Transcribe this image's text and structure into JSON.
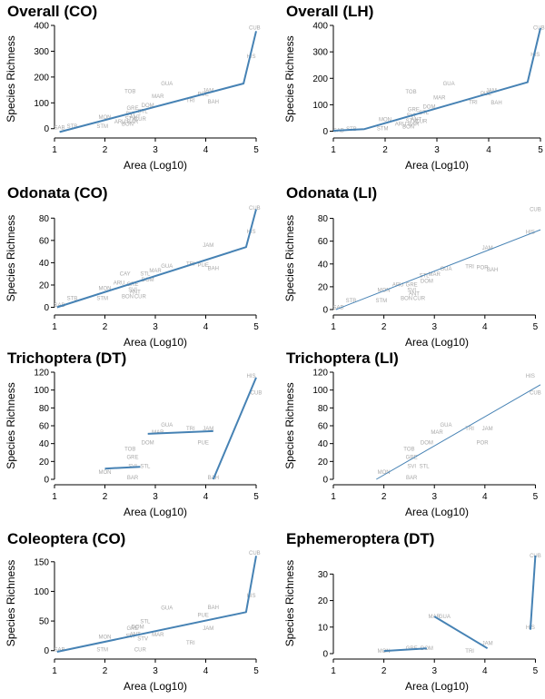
{
  "chart_data": [
    {
      "type": "scatter",
      "title": "Overall (CO)",
      "xlabel": "Area (Log10)",
      "ylabel": "Species Richness",
      "xlim": [
        1,
        5
      ],
      "ylim": [
        -15,
        400
      ],
      "xticks": [
        1,
        2,
        3,
        4,
        5
      ],
      "yticks": [
        0,
        100,
        200,
        300,
        400
      ],
      "fit_type": "piecewise",
      "fit": [
        [
          1.1,
          -13
        ],
        [
          4.75,
          175
        ],
        [
          5.0,
          378
        ]
      ],
      "points": [
        {
          "label": "CUB",
          "x": 4.97,
          "y": 392
        },
        {
          "label": "HIS",
          "x": 4.9,
          "y": 280
        },
        {
          "label": "GUA",
          "x": 3.23,
          "y": 175
        },
        {
          "label": "TOB",
          "x": 2.5,
          "y": 145
        },
        {
          "label": "JAM",
          "x": 4.05,
          "y": 148
        },
        {
          "label": "PUE",
          "x": 3.95,
          "y": 135
        },
        {
          "label": "MAR",
          "x": 3.05,
          "y": 125
        },
        {
          "label": "TRI",
          "x": 3.7,
          "y": 110
        },
        {
          "label": "BAH",
          "x": 4.15,
          "y": 105
        },
        {
          "label": "DOM",
          "x": 2.85,
          "y": 90
        },
        {
          "label": "GRE",
          "x": 2.55,
          "y": 80
        },
        {
          "label": "STL",
          "x": 2.75,
          "y": 68
        },
        {
          "label": "SVI",
          "x": 2.5,
          "y": 58
        },
        {
          "label": "MON",
          "x": 2.0,
          "y": 45
        },
        {
          "label": "ANT",
          "x": 2.6,
          "y": 45
        },
        {
          "label": "CUR",
          "x": 2.7,
          "y": 38
        },
        {
          "label": "STV",
          "x": 2.5,
          "y": 40
        },
        {
          "label": "ARU",
          "x": 2.3,
          "y": 28
        },
        {
          "label": "BAR",
          "x": 2.55,
          "y": 28
        },
        {
          "label": "BON",
          "x": 2.45,
          "y": 18
        },
        {
          "label": "STM",
          "x": 1.95,
          "y": 10
        },
        {
          "label": "STB",
          "x": 1.35,
          "y": 10
        },
        {
          "label": "SAB",
          "x": 1.1,
          "y": 5
        }
      ]
    },
    {
      "type": "scatter",
      "title": "Overall (LH)",
      "xlabel": "Area (Log10)",
      "ylabel": "Species Richness",
      "xlim": [
        1,
        5
      ],
      "ylim": [
        -5,
        400
      ],
      "xticks": [
        1,
        2,
        3,
        4,
        5
      ],
      "yticks": [
        0,
        100,
        200,
        300,
        400
      ],
      "fit_type": "piecewise",
      "fit": [
        [
          1.0,
          2
        ],
        [
          1.6,
          8
        ],
        [
          4.75,
          185
        ],
        [
          5.0,
          390
        ]
      ],
      "points": [
        {
          "label": "CUB",
          "x": 4.97,
          "y": 392
        },
        {
          "label": "HIS",
          "x": 4.9,
          "y": 290
        },
        {
          "label": "GUA",
          "x": 3.23,
          "y": 180
        },
        {
          "label": "TOB",
          "x": 2.5,
          "y": 150
        },
        {
          "label": "JAM",
          "x": 4.05,
          "y": 155
        },
        {
          "label": "PUE",
          "x": 3.95,
          "y": 142
        },
        {
          "label": "MAR",
          "x": 3.05,
          "y": 127
        },
        {
          "label": "TRI",
          "x": 3.7,
          "y": 110
        },
        {
          "label": "BAH",
          "x": 4.15,
          "y": 108
        },
        {
          "label": "DOM",
          "x": 2.85,
          "y": 92
        },
        {
          "label": "GRE",
          "x": 2.55,
          "y": 82
        },
        {
          "label": "STL",
          "x": 2.75,
          "y": 70
        },
        {
          "label": "SVI",
          "x": 2.5,
          "y": 60
        },
        {
          "label": "MON",
          "x": 2.0,
          "y": 45
        },
        {
          "label": "ANT",
          "x": 2.6,
          "y": 45
        },
        {
          "label": "CUR",
          "x": 2.7,
          "y": 38
        },
        {
          "label": "STV",
          "x": 2.5,
          "y": 40
        },
        {
          "label": "ARU",
          "x": 2.3,
          "y": 28
        },
        {
          "label": "BAR",
          "x": 2.55,
          "y": 28
        },
        {
          "label": "BON",
          "x": 2.45,
          "y": 18
        },
        {
          "label": "STM",
          "x": 1.95,
          "y": 10
        },
        {
          "label": "STB",
          "x": 1.35,
          "y": 8
        },
        {
          "label": "SAB",
          "x": 1.1,
          "y": 4
        }
      ]
    },
    {
      "type": "scatter",
      "title": "Odonata (CO)",
      "xlabel": "Area (Log10)",
      "ylabel": "Species Richness",
      "xlim": [
        1,
        5
      ],
      "ylim": [
        -2,
        90
      ],
      "xticks": [
        1,
        2,
        3,
        4,
        5
      ],
      "yticks": [
        0,
        20,
        40,
        60,
        80
      ],
      "fit_type": "piecewise",
      "fit": [
        [
          1.05,
          0
        ],
        [
          4.8,
          54
        ],
        [
          5.0,
          88
        ]
      ],
      "points": [
        {
          "label": "CUB",
          "x": 4.97,
          "y": 89
        },
        {
          "label": "HIS",
          "x": 4.9,
          "y": 68
        },
        {
          "label": "JAM",
          "x": 4.05,
          "y": 56
        },
        {
          "label": "TRI",
          "x": 3.7,
          "y": 39
        },
        {
          "label": "PUE",
          "x": 3.95,
          "y": 38
        },
        {
          "label": "BAH",
          "x": 4.15,
          "y": 35
        },
        {
          "label": "GUA",
          "x": 3.23,
          "y": 37
        },
        {
          "label": "MAR",
          "x": 3.0,
          "y": 33
        },
        {
          "label": "CAY",
          "x": 2.4,
          "y": 30
        },
        {
          "label": "STL",
          "x": 2.8,
          "y": 30
        },
        {
          "label": "DOM",
          "x": 2.85,
          "y": 25
        },
        {
          "label": "ARU",
          "x": 2.28,
          "y": 22
        },
        {
          "label": "GRE",
          "x": 2.55,
          "y": 21
        },
        {
          "label": "MON",
          "x": 2.0,
          "y": 17
        },
        {
          "label": "SVI",
          "x": 2.55,
          "y": 16
        },
        {
          "label": "ANT",
          "x": 2.6,
          "y": 14
        },
        {
          "label": "BON",
          "x": 2.45,
          "y": 10
        },
        {
          "label": "CUR",
          "x": 2.7,
          "y": 10
        },
        {
          "label": "STM",
          "x": 1.95,
          "y": 8
        },
        {
          "label": "STB",
          "x": 1.35,
          "y": 8
        },
        {
          "label": "SAB",
          "x": 1.1,
          "y": 2
        }
      ]
    },
    {
      "type": "scatter",
      "title": "Odonata (LI)",
      "xlabel": "Area (Log10)",
      "ylabel": "Species Richness",
      "xlim": [
        1,
        5.1
      ],
      "ylim": [
        0,
        90
      ],
      "xticks": [
        1,
        2,
        3,
        4,
        5
      ],
      "yticks": [
        0,
        20,
        40,
        60,
        80
      ],
      "fit_type": "linear",
      "fit": [
        [
          1.05,
          0
        ],
        [
          5.1,
          70
        ]
      ],
      "points": [
        {
          "label": "CUB",
          "x": 5.0,
          "y": 88
        },
        {
          "label": "HIS",
          "x": 4.9,
          "y": 68
        },
        {
          "label": "JAM",
          "x": 4.05,
          "y": 54
        },
        {
          "label": "TRI",
          "x": 3.7,
          "y": 38
        },
        {
          "label": "POR",
          "x": 3.95,
          "y": 37
        },
        {
          "label": "BAH",
          "x": 4.15,
          "y": 35
        },
        {
          "label": "GUA",
          "x": 3.23,
          "y": 36
        },
        {
          "label": "MAR",
          "x": 3.0,
          "y": 31
        },
        {
          "label": "STL",
          "x": 2.8,
          "y": 30
        },
        {
          "label": "DOM",
          "x": 2.85,
          "y": 25
        },
        {
          "label": "ARU",
          "x": 2.28,
          "y": 22
        },
        {
          "label": "GRE",
          "x": 2.55,
          "y": 22
        },
        {
          "label": "MON",
          "x": 2.0,
          "y": 17
        },
        {
          "label": "SVI",
          "x": 2.55,
          "y": 17
        },
        {
          "label": "ANT",
          "x": 2.6,
          "y": 14
        },
        {
          "label": "BON",
          "x": 2.45,
          "y": 10
        },
        {
          "label": "CUR",
          "x": 2.7,
          "y": 10
        },
        {
          "label": "STM",
          "x": 1.95,
          "y": 8
        },
        {
          "label": "STB",
          "x": 1.35,
          "y": 8
        },
        {
          "label": "SAB",
          "x": 1.1,
          "y": 2
        }
      ]
    },
    {
      "type": "scatter",
      "title": "Trichoptera (DT)",
      "xlabel": "Area (Log10)",
      "ylabel": "Species Richness",
      "xlim": [
        1,
        5
      ],
      "ylim": [
        0,
        120
      ],
      "xticks": [
        1,
        2,
        3,
        4,
        5
      ],
      "yticks": [
        0,
        20,
        40,
        60,
        80,
        100,
        120
      ],
      "fit_type": "segments",
      "fit_segments": [
        [
          [
            2.0,
            12
          ],
          [
            2.7,
            14
          ]
        ],
        [
          [
            2.85,
            51
          ],
          [
            4.15,
            54
          ]
        ],
        [
          [
            4.15,
            0
          ],
          [
            5.0,
            114
          ]
        ]
      ],
      "points": [
        {
          "label": "HIS",
          "x": 4.9,
          "y": 116
        },
        {
          "label": "CUB",
          "x": 5.0,
          "y": 97
        },
        {
          "label": "GUA",
          "x": 3.23,
          "y": 61
        },
        {
          "label": "TRI",
          "x": 3.7,
          "y": 57
        },
        {
          "label": "JAM",
          "x": 4.05,
          "y": 57
        },
        {
          "label": "MAR",
          "x": 3.05,
          "y": 53
        },
        {
          "label": "DOM",
          "x": 2.85,
          "y": 41
        },
        {
          "label": "PUE",
          "x": 3.95,
          "y": 41
        },
        {
          "label": "TOB",
          "x": 2.5,
          "y": 34
        },
        {
          "label": "GRE",
          "x": 2.55,
          "y": 25
        },
        {
          "label": "STL",
          "x": 2.8,
          "y": 15
        },
        {
          "label": "SVI",
          "x": 2.55,
          "y": 15
        },
        {
          "label": "MON",
          "x": 2.0,
          "y": 8
        },
        {
          "label": "BAR",
          "x": 2.55,
          "y": 2
        },
        {
          "label": "BAH",
          "x": 4.15,
          "y": 2
        }
      ]
    },
    {
      "type": "scatter",
      "title": "Trichoptera (LI)",
      "xlabel": "Area (Log10)",
      "ylabel": "Species Richness",
      "xlim": [
        1,
        5.1
      ],
      "ylim": [
        0,
        120
      ],
      "xticks": [
        1,
        2,
        3,
        4,
        5
      ],
      "yticks": [
        0,
        20,
        40,
        60,
        80,
        100,
        120
      ],
      "fit_type": "linear",
      "fit": [
        [
          1.85,
          0
        ],
        [
          5.1,
          106
        ]
      ],
      "points": [
        {
          "label": "HIS",
          "x": 4.9,
          "y": 116
        },
        {
          "label": "CUB",
          "x": 5.0,
          "y": 97
        },
        {
          "label": "GUA",
          "x": 3.23,
          "y": 61
        },
        {
          "label": "TRI",
          "x": 3.7,
          "y": 57
        },
        {
          "label": "JAM",
          "x": 4.05,
          "y": 57
        },
        {
          "label": "MAR",
          "x": 3.05,
          "y": 53
        },
        {
          "label": "DOM",
          "x": 2.85,
          "y": 41
        },
        {
          "label": "POR",
          "x": 3.95,
          "y": 41
        },
        {
          "label": "TOB",
          "x": 2.5,
          "y": 34
        },
        {
          "label": "GRE",
          "x": 2.55,
          "y": 25
        },
        {
          "label": "STL",
          "x": 2.8,
          "y": 15
        },
        {
          "label": "SVI",
          "x": 2.55,
          "y": 15
        },
        {
          "label": "MON",
          "x": 2.0,
          "y": 8
        },
        {
          "label": "BAR",
          "x": 2.55,
          "y": 2
        }
      ]
    },
    {
      "type": "scatter",
      "title": "Coleoptera (CO)",
      "xlabel": "Area (Log10)",
      "ylabel": "Species Richness",
      "xlim": [
        1,
        5
      ],
      "ylim": [
        -5,
        165
      ],
      "xticks": [
        1,
        2,
        3,
        4,
        5
      ],
      "yticks": [
        0,
        50,
        100,
        150
      ],
      "fit_type": "piecewise",
      "fit": [
        [
          1.05,
          -2
        ],
        [
          4.8,
          65
        ],
        [
          5.0,
          160
        ]
      ],
      "points": [
        {
          "label": "CUB",
          "x": 4.97,
          "y": 165
        },
        {
          "label": "HIS",
          "x": 4.9,
          "y": 93
        },
        {
          "label": "GUA",
          "x": 3.23,
          "y": 72
        },
        {
          "label": "BAH",
          "x": 4.15,
          "y": 73
        },
        {
          "label": "PUE",
          "x": 3.95,
          "y": 60
        },
        {
          "label": "STL",
          "x": 2.8,
          "y": 49
        },
        {
          "label": "JAM",
          "x": 4.05,
          "y": 38
        },
        {
          "label": "GRE",
          "x": 2.55,
          "y": 38
        },
        {
          "label": "DOM",
          "x": 2.65,
          "y": 40
        },
        {
          "label": "MON",
          "x": 2.0,
          "y": 23
        },
        {
          "label": "MAR",
          "x": 3.05,
          "y": 27
        },
        {
          "label": "SVI",
          "x": 2.5,
          "y": 25
        },
        {
          "label": "STV",
          "x": 2.75,
          "y": 20
        },
        {
          "label": "ANT",
          "x": 2.6,
          "y": 28
        },
        {
          "label": "TRI",
          "x": 3.7,
          "y": 13
        },
        {
          "label": "STM",
          "x": 1.95,
          "y": 2
        },
        {
          "label": "CUR",
          "x": 2.7,
          "y": 2
        },
        {
          "label": "SAB",
          "x": 1.1,
          "y": 2
        }
      ]
    },
    {
      "type": "scatter",
      "title": "Ephemeroptera (DT)",
      "xlabel": "Area (Log10)",
      "ylabel": "Species Richness",
      "xlim": [
        1,
        5.1
      ],
      "ylim": [
        0,
        38
      ],
      "xticks": [
        1,
        2,
        3,
        4,
        5
      ],
      "yticks": [
        0,
        10,
        20,
        30
      ],
      "fit_type": "segments",
      "fit_segments": [
        [
          [
            2.0,
            1
          ],
          [
            2.85,
            2
          ]
        ],
        [
          [
            3.0,
            14
          ],
          [
            4.05,
            2
          ]
        ],
        [
          [
            4.9,
            9
          ],
          [
            5.0,
            37
          ]
        ]
      ],
      "points": [
        {
          "label": "CUB",
          "x": 5.0,
          "y": 37
        },
        {
          "label": "HIS",
          "x": 4.9,
          "y": 10
        },
        {
          "label": "MAR",
          "x": 3.0,
          "y": 14
        },
        {
          "label": "GUA",
          "x": 3.2,
          "y": 14
        },
        {
          "label": "JAM",
          "x": 4.05,
          "y": 4
        },
        {
          "label": "TRI",
          "x": 3.7,
          "y": 1
        },
        {
          "label": "DOM",
          "x": 2.85,
          "y": 2
        },
        {
          "label": "GRE",
          "x": 2.55,
          "y": 2
        },
        {
          "label": "MON",
          "x": 2.0,
          "y": 1
        }
      ]
    }
  ],
  "colors": {
    "fit_line": "#4682b4",
    "point_label": "#a8a8a8",
    "axis": "#000000"
  }
}
